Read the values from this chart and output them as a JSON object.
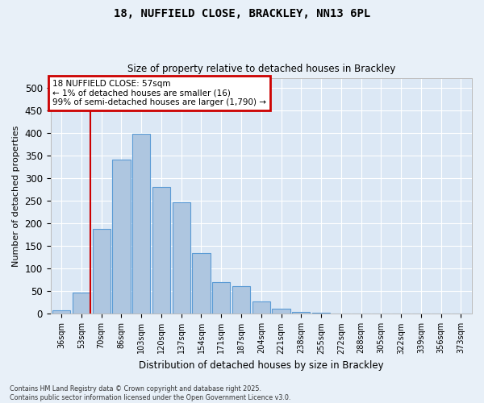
{
  "title_line1": "18, NUFFIELD CLOSE, BRACKLEY, NN13 6PL",
  "title_line2": "Size of property relative to detached houses in Brackley",
  "xlabel": "Distribution of detached houses by size in Brackley",
  "ylabel": "Number of detached properties",
  "categories": [
    "36sqm",
    "53sqm",
    "70sqm",
    "86sqm",
    "103sqm",
    "120sqm",
    "137sqm",
    "154sqm",
    "171sqm",
    "187sqm",
    "204sqm",
    "221sqm",
    "238sqm",
    "255sqm",
    "272sqm",
    "288sqm",
    "305sqm",
    "322sqm",
    "339sqm",
    "356sqm",
    "373sqm"
  ],
  "values": [
    8,
    47,
    188,
    340,
    398,
    280,
    247,
    135,
    70,
    62,
    27,
    12,
    5,
    3,
    1,
    0,
    0,
    0,
    0,
    0,
    0
  ],
  "bar_color": "#aec6e0",
  "bar_edge_color": "#5b9bd5",
  "annotation_text": "18 NUFFIELD CLOSE: 57sqm\n← 1% of detached houses are smaller (16)\n99% of semi-detached houses are larger (1,790) →",
  "annotation_box_color": "#ffffff",
  "annotation_box_edge_color": "#cc0000",
  "ylim": [
    0,
    520
  ],
  "yticks": [
    0,
    50,
    100,
    150,
    200,
    250,
    300,
    350,
    400,
    450,
    500
  ],
  "plot_bg_color": "#dce8f5",
  "fig_bg_color": "#e8f0f8",
  "grid_color": "#ffffff",
  "footer_line1": "Contains HM Land Registry data © Crown copyright and database right 2025.",
  "footer_line2": "Contains public sector information licensed under the Open Government Licence v3.0."
}
